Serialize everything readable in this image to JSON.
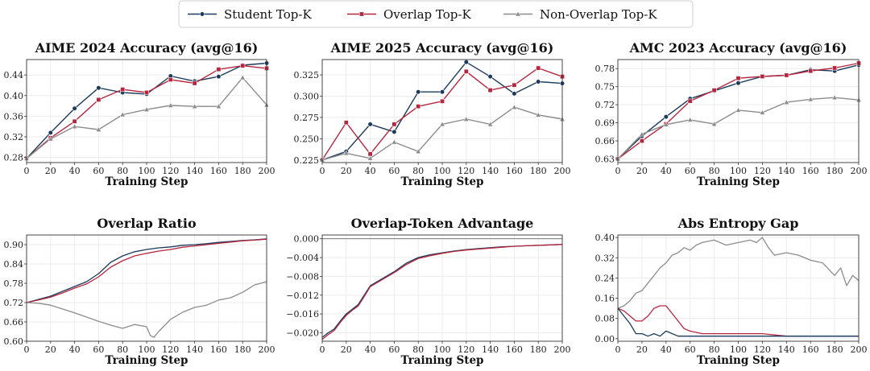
{
  "colors": {
    "student": "#1b3a5c",
    "overlap": "#b5273f",
    "nonoverlap": "#8c8c8c"
  },
  "legend": [
    {
      "key": "student",
      "label": "Student Top-K",
      "marker": "circle"
    },
    {
      "key": "overlap",
      "label": "Overlap Top-K",
      "marker": "square"
    },
    {
      "key": "nonoverlap",
      "label": "Non-Overlap Top-K",
      "marker": "triangle"
    }
  ],
  "chart_data": [
    {
      "type": "line",
      "title": "AIME 2024 Accuracy (avg@16)",
      "xlabel": "Training Step",
      "ylabel": "",
      "xlim": [
        0,
        200
      ],
      "ylim": [
        0.27,
        0.47
      ],
      "xticks": [
        0,
        20,
        40,
        60,
        80,
        100,
        120,
        140,
        160,
        180,
        200
      ],
      "yticks": [
        0.28,
        0.32,
        0.36,
        0.4,
        0.44
      ],
      "ytick_labels": [
        "0.28",
        "0.32",
        "0.36",
        "0.40",
        "0.44"
      ],
      "markers": true,
      "legend": "top-center",
      "series": [
        {
          "key": "student",
          "name": "Student Top-K",
          "x": [
            0,
            20,
            40,
            60,
            80,
            100,
            120,
            140,
            160,
            180,
            200
          ],
          "y": [
            0.278,
            0.328,
            0.375,
            0.415,
            0.406,
            0.403,
            0.438,
            0.428,
            0.437,
            0.459,
            0.463
          ]
        },
        {
          "key": "overlap",
          "name": "Overlap Top-K",
          "x": [
            0,
            20,
            40,
            60,
            80,
            100,
            120,
            140,
            160,
            180,
            200
          ],
          "y": [
            0.278,
            0.318,
            0.35,
            0.392,
            0.412,
            0.406,
            0.431,
            0.424,
            0.451,
            0.458,
            0.453
          ]
        },
        {
          "key": "nonoverlap",
          "name": "Non-Overlap Top-K",
          "x": [
            0,
            20,
            40,
            60,
            80,
            100,
            120,
            140,
            160,
            180,
            200
          ],
          "y": [
            0.278,
            0.316,
            0.34,
            0.334,
            0.363,
            0.373,
            0.381,
            0.379,
            0.379,
            0.435,
            0.382
          ]
        }
      ]
    },
    {
      "type": "line",
      "title": "AIME 2025 Accuracy (avg@16)",
      "xlabel": "Training Step",
      "ylabel": "",
      "xlim": [
        0,
        200
      ],
      "ylim": [
        0.222,
        0.343
      ],
      "xticks": [
        0,
        20,
        40,
        60,
        80,
        100,
        120,
        140,
        160,
        180,
        200
      ],
      "yticks": [
        0.225,
        0.25,
        0.275,
        0.3,
        0.325
      ],
      "ytick_labels": [
        "0.225",
        "0.250",
        "0.275",
        "0.300",
        "0.325"
      ],
      "markers": true,
      "series": [
        {
          "key": "student",
          "name": "Student Top-K",
          "x": [
            0,
            20,
            40,
            60,
            80,
            100,
            120,
            140,
            160,
            180,
            200
          ],
          "y": [
            0.225,
            0.235,
            0.267,
            0.258,
            0.305,
            0.305,
            0.34,
            0.323,
            0.303,
            0.317,
            0.315
          ]
        },
        {
          "key": "overlap",
          "name": "Overlap Top-K",
          "x": [
            0,
            20,
            40,
            60,
            80,
            100,
            120,
            140,
            160,
            180,
            200
          ],
          "y": [
            0.225,
            0.269,
            0.232,
            0.267,
            0.288,
            0.294,
            0.329,
            0.307,
            0.313,
            0.333,
            0.323
          ]
        },
        {
          "key": "nonoverlap",
          "name": "Non-Overlap Top-K",
          "x": [
            0,
            20,
            40,
            60,
            80,
            100,
            120,
            140,
            160,
            180,
            200
          ],
          "y": [
            0.225,
            0.233,
            0.227,
            0.246,
            0.235,
            0.267,
            0.273,
            0.267,
            0.287,
            0.278,
            0.273
          ]
        }
      ]
    },
    {
      "type": "line",
      "title": "AMC 2023 Accuracy (avg@16)",
      "xlabel": "Training Step",
      "ylabel": "",
      "xlim": [
        0,
        200
      ],
      "ylim": [
        0.624,
        0.795
      ],
      "xticks": [
        0,
        20,
        40,
        60,
        80,
        100,
        120,
        140,
        160,
        180,
        200
      ],
      "yticks": [
        0.63,
        0.66,
        0.69,
        0.72,
        0.75,
        0.78
      ],
      "ytick_labels": [
        "0.63",
        "0.66",
        "0.69",
        "0.72",
        "0.75",
        "0.78"
      ],
      "markers": true,
      "series": [
        {
          "key": "student",
          "name": "Student Top-K",
          "x": [
            0,
            20,
            40,
            60,
            80,
            100,
            120,
            140,
            160,
            180,
            200
          ],
          "y": [
            0.63,
            0.668,
            0.7,
            0.73,
            0.743,
            0.756,
            0.767,
            0.769,
            0.778,
            0.776,
            0.786
          ]
        },
        {
          "key": "overlap",
          "name": "Overlap Top-K",
          "x": [
            0,
            20,
            40,
            60,
            80,
            100,
            120,
            140,
            160,
            180,
            200
          ],
          "y": [
            0.63,
            0.66,
            0.688,
            0.726,
            0.744,
            0.764,
            0.767,
            0.769,
            0.776,
            0.781,
            0.789
          ]
        },
        {
          "key": "nonoverlap",
          "name": "Non-Overlap Top-K",
          "x": [
            0,
            20,
            40,
            60,
            80,
            100,
            120,
            140,
            160,
            180,
            200
          ],
          "y": [
            0.63,
            0.671,
            0.687,
            0.695,
            0.688,
            0.711,
            0.707,
            0.724,
            0.729,
            0.732,
            0.728
          ]
        }
      ]
    },
    {
      "type": "line",
      "title": "Overlap Ratio",
      "xlabel": "Training Step",
      "ylabel": "",
      "xlim": [
        0,
        200
      ],
      "ylim": [
        0.6,
        0.93
      ],
      "xticks": [
        0,
        20,
        40,
        60,
        80,
        100,
        120,
        140,
        160,
        180,
        200
      ],
      "yticks": [
        0.6,
        0.66,
        0.72,
        0.78,
        0.84,
        0.9
      ],
      "ytick_labels": [
        "0.60",
        "0.66",
        "0.72",
        "0.78",
        "0.84",
        "0.90"
      ],
      "markers": false,
      "series": [
        {
          "key": "student",
          "name": "Student Top-K",
          "x": [
            0,
            10,
            20,
            30,
            40,
            50,
            60,
            70,
            80,
            90,
            100,
            110,
            120,
            130,
            140,
            150,
            160,
            170,
            180,
            190,
            200
          ],
          "y": [
            0.72,
            0.73,
            0.74,
            0.755,
            0.77,
            0.785,
            0.81,
            0.845,
            0.865,
            0.878,
            0.885,
            0.89,
            0.893,
            0.898,
            0.9,
            0.903,
            0.907,
            0.91,
            0.913,
            0.915,
            0.918
          ]
        },
        {
          "key": "overlap",
          "name": "Overlap Top-K",
          "x": [
            0,
            10,
            20,
            30,
            40,
            50,
            60,
            70,
            80,
            90,
            100,
            110,
            120,
            130,
            140,
            150,
            160,
            170,
            180,
            190,
            200
          ],
          "y": [
            0.72,
            0.728,
            0.737,
            0.75,
            0.765,
            0.778,
            0.8,
            0.83,
            0.85,
            0.865,
            0.873,
            0.88,
            0.885,
            0.892,
            0.896,
            0.9,
            0.904,
            0.908,
            0.912,
            0.914,
            0.917
          ]
        },
        {
          "key": "nonoverlap",
          "name": "Non-Overlap Top-K",
          "x": [
            0,
            10,
            20,
            30,
            40,
            50,
            60,
            70,
            80,
            90,
            100,
            103,
            106,
            110,
            120,
            130,
            140,
            150,
            160,
            170,
            180,
            190,
            200
          ],
          "y": [
            0.72,
            0.718,
            0.712,
            0.7,
            0.688,
            0.675,
            0.662,
            0.65,
            0.64,
            0.652,
            0.645,
            0.618,
            0.612,
            0.63,
            0.668,
            0.69,
            0.705,
            0.712,
            0.728,
            0.735,
            0.752,
            0.775,
            0.785
          ]
        }
      ]
    },
    {
      "type": "line",
      "title": "Overlap-Token Advantage",
      "xlabel": "Training Step",
      "ylabel": "",
      "xlim": [
        0,
        200
      ],
      "ylim": [
        -0.0218,
        0.0008
      ],
      "xticks": [
        0,
        20,
        40,
        60,
        80,
        100,
        120,
        140,
        160,
        180,
        200
      ],
      "yticks": [
        0.0,
        -0.004,
        -0.008,
        -0.012,
        -0.016,
        -0.02
      ],
      "ytick_labels": [
        "0.000",
        "−0.004",
        "−0.008",
        "−0.012",
        "−0.016",
        "−0.020"
      ],
      "hline": 0,
      "markers": false,
      "series": [
        {
          "key": "student",
          "name": "Student Top-K",
          "x": [
            0,
            5,
            10,
            15,
            20,
            25,
            30,
            35,
            40,
            50,
            60,
            70,
            80,
            90,
            100,
            110,
            120,
            130,
            140,
            150,
            160,
            170,
            180,
            190,
            200
          ],
          "y": [
            -0.021,
            -0.02,
            -0.0192,
            -0.0175,
            -0.016,
            -0.015,
            -0.014,
            -0.012,
            -0.01,
            -0.0085,
            -0.007,
            -0.0052,
            -0.004,
            -0.0034,
            -0.003,
            -0.0026,
            -0.0023,
            -0.0021,
            -0.0019,
            -0.0017,
            -0.0016,
            -0.0015,
            -0.0014,
            -0.0013,
            -0.0012
          ]
        },
        {
          "key": "overlap",
          "name": "Overlap Top-K",
          "x": [
            0,
            5,
            10,
            15,
            20,
            25,
            30,
            35,
            40,
            50,
            60,
            70,
            80,
            90,
            100,
            110,
            120,
            130,
            140,
            150,
            160,
            170,
            180,
            190,
            200
          ],
          "y": [
            -0.0214,
            -0.0204,
            -0.0195,
            -0.0178,
            -0.0163,
            -0.0152,
            -0.0143,
            -0.0123,
            -0.0102,
            -0.0087,
            -0.0072,
            -0.0055,
            -0.0042,
            -0.0036,
            -0.0031,
            -0.0027,
            -0.0024,
            -0.0022,
            -0.002,
            -0.0018,
            -0.0016,
            -0.0015,
            -0.0014,
            -0.0013,
            -0.0012
          ]
        }
      ]
    },
    {
      "type": "line",
      "title": "Abs Entropy Gap",
      "xlabel": "Training Step",
      "ylabel": "",
      "xlim": [
        0,
        200
      ],
      "ylim": [
        -0.01,
        0.41
      ],
      "xticks": [
        0,
        20,
        40,
        60,
        80,
        100,
        120,
        140,
        160,
        180,
        200
      ],
      "yticks": [
        0.0,
        0.08,
        0.16,
        0.24,
        0.32,
        0.4
      ],
      "ytick_labels": [
        "0.00",
        "0.08",
        "0.16",
        "0.24",
        "0.32",
        "0.40"
      ],
      "markers": false,
      "series": [
        {
          "key": "nonoverlap",
          "name": "Non-Overlap Top-K",
          "x": [
            0,
            5,
            10,
            15,
            20,
            25,
            30,
            35,
            40,
            45,
            50,
            55,
            60,
            65,
            70,
            80,
            90,
            100,
            110,
            115,
            120,
            125,
            130,
            140,
            150,
            160,
            170,
            180,
            185,
            190,
            195,
            200
          ],
          "y": [
            0.12,
            0.13,
            0.15,
            0.18,
            0.19,
            0.22,
            0.25,
            0.28,
            0.3,
            0.33,
            0.34,
            0.36,
            0.35,
            0.37,
            0.38,
            0.39,
            0.37,
            0.38,
            0.39,
            0.38,
            0.4,
            0.36,
            0.33,
            0.34,
            0.33,
            0.31,
            0.3,
            0.25,
            0.28,
            0.21,
            0.25,
            0.23
          ]
        },
        {
          "key": "overlap",
          "name": "Overlap Top-K",
          "x": [
            0,
            5,
            10,
            15,
            20,
            25,
            30,
            35,
            40,
            45,
            50,
            55,
            60,
            70,
            80,
            90,
            100,
            120,
            140,
            160,
            180,
            200
          ],
          "y": [
            0.12,
            0.11,
            0.09,
            0.07,
            0.07,
            0.09,
            0.12,
            0.13,
            0.13,
            0.1,
            0.07,
            0.04,
            0.03,
            0.02,
            0.02,
            0.02,
            0.02,
            0.02,
            0.01,
            0.01,
            0.01,
            0.01
          ]
        },
        {
          "key": "student",
          "name": "Student Top-K",
          "x": [
            0,
            5,
            10,
            15,
            20,
            25,
            30,
            35,
            40,
            50,
            60,
            80,
            100,
            120,
            140,
            160,
            180,
            200
          ],
          "y": [
            0.12,
            0.09,
            0.06,
            0.02,
            0.02,
            0.01,
            0.02,
            0.01,
            0.03,
            0.01,
            0.01,
            0.01,
            0.01,
            0.01,
            0.01,
            0.01,
            0.01,
            0.01
          ]
        }
      ]
    }
  ]
}
